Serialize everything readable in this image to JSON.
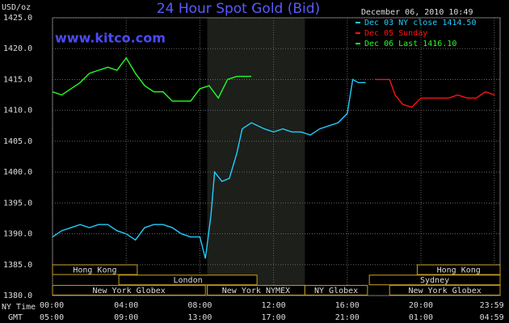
{
  "chart_data": {
    "type": "line",
    "title": "24 Hour Spot Gold (Bid)",
    "y_label": "USD/oz",
    "timestamp": "December 06, 2010 10:49",
    "watermark": "www.kitco.com",
    "xlim": [
      0,
      24.3
    ],
    "ylim": [
      1380,
      1425
    ],
    "grid": true,
    "x_row_labels": [
      "NY Time",
      "GMT"
    ],
    "xticks": [
      {
        "value": 0,
        "label": "00:00"
      },
      {
        "value": 4,
        "label": "04:00"
      },
      {
        "value": 8,
        "label": "08:00"
      },
      {
        "value": 12,
        "label": "12:00"
      },
      {
        "value": 16,
        "label": "16:00"
      },
      {
        "value": 20,
        "label": "20:00"
      },
      {
        "value": 23.98,
        "label": "23:59"
      }
    ],
    "gmt_labels": [
      "05:00",
      "09:00",
      "13:00",
      "17:00",
      "21:00",
      "01:00",
      "04:59"
    ],
    "yticks": [
      {
        "value": 1380,
        "label": "1380.0"
      },
      {
        "value": 1385,
        "label": "1385.0"
      },
      {
        "value": 1390,
        "label": "1390.0"
      },
      {
        "value": 1395,
        "label": "1395.0"
      },
      {
        "value": 1400,
        "label": "1400.0"
      },
      {
        "value": 1405,
        "label": "1405.0"
      },
      {
        "value": 1410,
        "label": "1410.0"
      },
      {
        "value": 1415,
        "label": "1415.0"
      },
      {
        "value": 1420,
        "label": "1420.0"
      },
      {
        "value": 1425,
        "label": "1425.0"
      }
    ],
    "highlight": [
      8.4,
      13.7
    ],
    "sessions": [
      [
        {
          "name": "Hong Kong",
          "start": 0,
          "end": 4.6
        },
        {
          "name": "Hong Kong",
          "start": 19.8,
          "end": 24.3
        }
      ],
      [
        {
          "name": "London",
          "start": 3.6,
          "end": 11.1
        },
        {
          "name": "Sydney",
          "start": 17.2,
          "end": 24.3
        }
      ],
      [
        {
          "name": "New York Globex",
          "start": 0,
          "end": 8.3
        },
        {
          "name": "New York NYMEX",
          "start": 8.4,
          "end": 13.7
        },
        {
          "name": "NY Globex",
          "start": 13.7,
          "end": 17.1
        },
        {
          "name": "New York Globex",
          "start": 18.3,
          "end": 24.3
        }
      ]
    ],
    "series": [
      {
        "name": "Dec 03 NY close 1414.50",
        "color": "#22ccff",
        "x": [
          0,
          0.5,
          1,
          1.5,
          2,
          2.5,
          3,
          3.5,
          4,
          4.5,
          5,
          5.5,
          6,
          6.5,
          7,
          7.5,
          8,
          8.3,
          8.6,
          8.8,
          9.2,
          9.6,
          10,
          10.3,
          10.8,
          11.5,
          12,
          12.5,
          13,
          13.5,
          14,
          14.5,
          15,
          15.5,
          16,
          16.3,
          16.6,
          17
        ],
        "values": [
          1389.5,
          1390.5,
          1391,
          1391.5,
          1391,
          1391.5,
          1391.5,
          1390.5,
          1390,
          1389,
          1391,
          1391.5,
          1391.5,
          1391,
          1390,
          1389.5,
          1389.5,
          1386,
          1393,
          1400,
          1398.5,
          1399,
          1403,
          1407,
          1408,
          1407,
          1406.5,
          1407,
          1406.5,
          1406.5,
          1406,
          1407,
          1407.5,
          1408,
          1409.5,
          1415,
          1414.5,
          1414.5
        ]
      },
      {
        "name": "Dec 05 Sunday",
        "color": "#ff1111",
        "x": [
          17.5,
          18,
          18.3,
          18.6,
          19,
          19.5,
          20,
          20.5,
          21,
          21.5,
          22,
          22.5,
          23,
          23.5,
          24
        ],
        "values": [
          1415,
          1415,
          1415,
          1412.5,
          1411,
          1410.5,
          1412,
          1412,
          1412,
          1412,
          1412.5,
          1412,
          1412,
          1413,
          1412.5
        ]
      },
      {
        "name": "Dec 06 Last 1416.10",
        "color": "#22ff22",
        "x": [
          0,
          0.5,
          1,
          1.5,
          2,
          2.5,
          3,
          3.5,
          4,
          4.5,
          5,
          5.5,
          6,
          6.5,
          7,
          7.5,
          8,
          8.5,
          9,
          9.5,
          10,
          10.5,
          10.8
        ],
        "values": [
          1413,
          1412.5,
          1413.5,
          1414.5,
          1416,
          1416.5,
          1417,
          1416.5,
          1418.5,
          1416,
          1414,
          1413,
          1413,
          1411.5,
          1411.5,
          1411.5,
          1413.5,
          1414,
          1412,
          1415,
          1415.5,
          1415.5,
          1415.5
        ]
      }
    ]
  }
}
